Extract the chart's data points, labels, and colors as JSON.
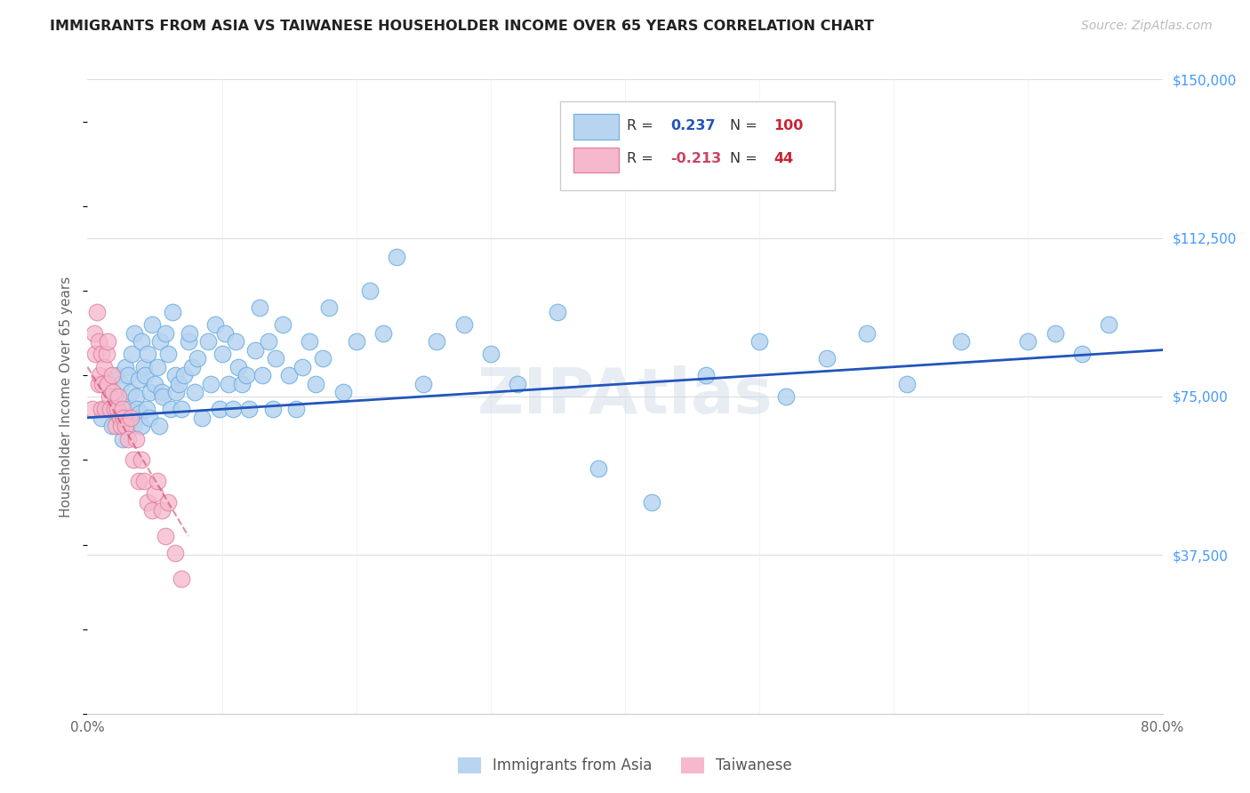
{
  "title": "IMMIGRANTS FROM ASIA VS TAIWANESE HOUSEHOLDER INCOME OVER 65 YEARS CORRELATION CHART",
  "source": "Source: ZipAtlas.com",
  "ylabel": "Householder Income Over 65 years",
  "x_min": 0.0,
  "x_max": 0.8,
  "y_min": 0,
  "y_max": 150000,
  "y_ticks": [
    0,
    37500,
    75000,
    112500,
    150000
  ],
  "y_tick_labels": [
    "",
    "$37,500",
    "$75,000",
    "$112,500",
    "$150,000"
  ],
  "x_ticks": [
    0.0,
    0.1,
    0.2,
    0.3,
    0.4,
    0.5,
    0.6,
    0.7,
    0.8
  ],
  "x_tick_labels": [
    "0.0%",
    "",
    "",
    "",
    "",
    "",
    "",
    "",
    "80.0%"
  ],
  "blue_fill": "#b8d4f0",
  "blue_edge": "#6aaee0",
  "pink_fill": "#f5b8cc",
  "pink_edge": "#e07898",
  "trend_blue": "#2255bb",
  "trend_pink": "#cc4466",
  "watermark": "#ccd8e8",
  "R_color": "#2255bb",
  "neg_R_color": "#cc4466",
  "N_color": "#cc2233",
  "blue_x": [
    0.01,
    0.015,
    0.018,
    0.02,
    0.022,
    0.024,
    0.025,
    0.026,
    0.028,
    0.03,
    0.03,
    0.032,
    0.033,
    0.034,
    0.035,
    0.036,
    0.037,
    0.038,
    0.039,
    0.04,
    0.04,
    0.042,
    0.043,
    0.044,
    0.045,
    0.046,
    0.047,
    0.048,
    0.05,
    0.052,
    0.053,
    0.054,
    0.055,
    0.056,
    0.058,
    0.06,
    0.062,
    0.063,
    0.065,
    0.066,
    0.068,
    0.07,
    0.072,
    0.075,
    0.076,
    0.078,
    0.08,
    0.082,
    0.085,
    0.09,
    0.092,
    0.095,
    0.098,
    0.1,
    0.102,
    0.105,
    0.108,
    0.11,
    0.112,
    0.115,
    0.118,
    0.12,
    0.125,
    0.128,
    0.13,
    0.135,
    0.138,
    0.14,
    0.145,
    0.15,
    0.155,
    0.16,
    0.165,
    0.17,
    0.175,
    0.18,
    0.19,
    0.2,
    0.21,
    0.22,
    0.23,
    0.25,
    0.26,
    0.28,
    0.3,
    0.32,
    0.35,
    0.38,
    0.42,
    0.46,
    0.5,
    0.52,
    0.55,
    0.58,
    0.61,
    0.65,
    0.7,
    0.72,
    0.74,
    0.76
  ],
  "blue_y": [
    70000,
    72000,
    68000,
    75000,
    80000,
    71000,
    78000,
    65000,
    82000,
    72000,
    80000,
    76000,
    85000,
    68000,
    90000,
    75000,
    72000,
    79000,
    71000,
    88000,
    68000,
    82000,
    80000,
    72000,
    85000,
    70000,
    76000,
    92000,
    78000,
    82000,
    68000,
    88000,
    76000,
    75000,
    90000,
    85000,
    72000,
    95000,
    80000,
    76000,
    78000,
    72000,
    80000,
    88000,
    90000,
    82000,
    76000,
    84000,
    70000,
    88000,
    78000,
    92000,
    72000,
    85000,
    90000,
    78000,
    72000,
    88000,
    82000,
    78000,
    80000,
    72000,
    86000,
    96000,
    80000,
    88000,
    72000,
    84000,
    92000,
    80000,
    72000,
    82000,
    88000,
    78000,
    84000,
    96000,
    76000,
    88000,
    100000,
    90000,
    108000,
    78000,
    88000,
    92000,
    85000,
    78000,
    95000,
    58000,
    50000,
    80000,
    88000,
    75000,
    84000,
    90000,
    78000,
    88000,
    88000,
    90000,
    85000,
    92000
  ],
  "pink_x": [
    0.004,
    0.005,
    0.006,
    0.007,
    0.008,
    0.008,
    0.009,
    0.01,
    0.01,
    0.011,
    0.012,
    0.013,
    0.014,
    0.015,
    0.015,
    0.016,
    0.017,
    0.018,
    0.019,
    0.02,
    0.021,
    0.022,
    0.023,
    0.024,
    0.025,
    0.026,
    0.027,
    0.028,
    0.03,
    0.032,
    0.034,
    0.036,
    0.038,
    0.04,
    0.042,
    0.045,
    0.048,
    0.05,
    0.052,
    0.055,
    0.058,
    0.06,
    0.065,
    0.07
  ],
  "pink_y": [
    72000,
    90000,
    85000,
    95000,
    78000,
    88000,
    80000,
    72000,
    85000,
    78000,
    82000,
    72000,
    85000,
    88000,
    78000,
    75000,
    72000,
    80000,
    76000,
    72000,
    68000,
    72000,
    75000,
    70000,
    68000,
    72000,
    70000,
    68000,
    65000,
    70000,
    60000,
    65000,
    55000,
    60000,
    55000,
    50000,
    48000,
    52000,
    55000,
    48000,
    42000,
    50000,
    38000,
    32000
  ],
  "trend_blue_x0": 0.0,
  "trend_blue_y0": 70000,
  "trend_blue_x1": 0.8,
  "trend_blue_y1": 86000,
  "trend_pink_x0": 0.0,
  "trend_pink_y0": 82000,
  "trend_pink_x1": 0.075,
  "trend_pink_y1": 42000
}
